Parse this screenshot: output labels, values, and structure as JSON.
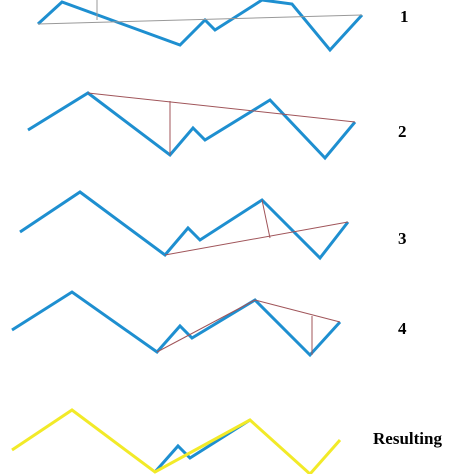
{
  "steps": [
    {
      "label": "1"
    },
    {
      "label": "2"
    },
    {
      "label": "3"
    },
    {
      "label": "4"
    }
  ],
  "result": {
    "label": "Resulting"
  }
}
